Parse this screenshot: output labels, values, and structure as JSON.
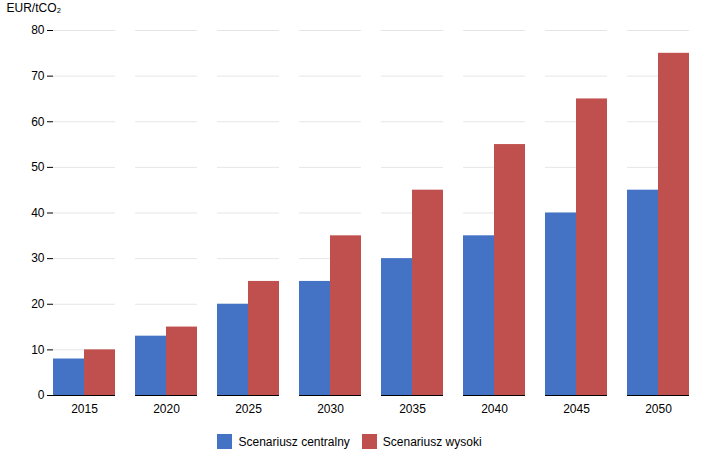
{
  "chart_data": {
    "type": "bar",
    "ylabel": "EUR/tCO₂",
    "categories": [
      "2015",
      "2020",
      "2025",
      "2030",
      "2035",
      "2040",
      "2045",
      "2050"
    ],
    "series": [
      {
        "name": "Scenariusz centralny",
        "color": "#4472C4",
        "values": [
          8,
          13,
          20,
          25,
          30,
          35,
          40,
          45
        ]
      },
      {
        "name": "Scenariusz wysoki",
        "color": "#C0504D",
        "values": [
          10,
          15,
          25,
          35,
          45,
          55,
          65,
          75
        ]
      }
    ],
    "ylim": [
      0,
      80
    ],
    "yticks": [
      0,
      10,
      20,
      30,
      40,
      50,
      60,
      70,
      80
    ],
    "grid": true,
    "legend": "bottom"
  }
}
